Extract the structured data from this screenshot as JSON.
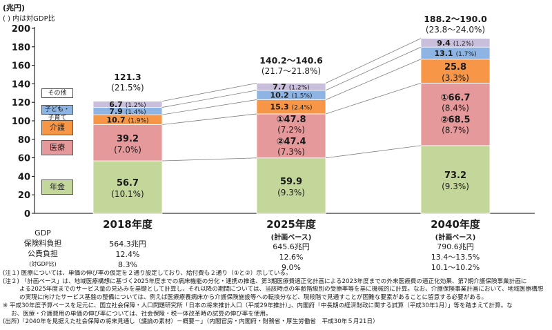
{
  "header": {
    "unit": "(兆円)",
    "note": "( ) 内は対GDP比"
  },
  "colors": {
    "pension": "#c4d79b",
    "medical": "#e6999a",
    "care": "#f79646",
    "child": "#8db4e2",
    "other": "#c9bedb",
    "connector": "#7f7f7f",
    "axis": "#000000"
  },
  "chart_data": {
    "type": "bar",
    "stacked": true,
    "ylim": [
      0,
      200
    ],
    "yticks": [
      0,
      20,
      40,
      60,
      80,
      100,
      120,
      140,
      160,
      180,
      200
    ],
    "categories": [
      "2018年度",
      "2025年度",
      "2040年度"
    ],
    "category_sub": [
      "",
      "(計画ベース)",
      "(計画ベース)"
    ],
    "series": [
      {
        "name": "年金",
        "key": "pension",
        "values": [
          56.7,
          59.9,
          73.2
        ],
        "labels": [
          "56.7",
          "59.9",
          "73.2"
        ],
        "sublabels": [
          "(10.1%)",
          "(9.3%)",
          "(9.3%)"
        ]
      },
      {
        "name": "医療",
        "key": "medical",
        "values": [
          39.2,
          47.6,
          67.6
        ],
        "labels": [
          "39.2",
          "①47.8",
          "①66.7"
        ],
        "sublabels": [
          "(7.0%)",
          "(7.2%)",
          "(8.4%)"
        ],
        "labels2": [
          "",
          "②47.4",
          "②68.5"
        ],
        "sublabels2": [
          "",
          "(7.3%)",
          "(8.7%)"
        ]
      },
      {
        "name": "介護",
        "key": "care",
        "values": [
          10.7,
          15.3,
          25.8
        ],
        "labels": [
          "10.7",
          "15.3",
          "25.8"
        ],
        "sublabels": [
          "(1.9%)",
          "(2.4%)",
          "(3.3%)"
        ]
      },
      {
        "name": "子ども・子育て",
        "key": "child",
        "values": [
          7.9,
          10.2,
          13.1
        ],
        "labels": [
          "7.9",
          "10.2",
          "13.1"
        ],
        "sublabels": [
          "(1.4%)",
          "(1.5%)",
          "(1.7%)"
        ]
      },
      {
        "name": "その他",
        "key": "other",
        "values": [
          6.7,
          7.7,
          9.4
        ],
        "labels": [
          "6.7",
          "7.7",
          "9.4"
        ],
        "sublabels": [
          "(1.2%)",
          "(1.2%)",
          "(1.2%)"
        ]
      }
    ],
    "totals": [
      "121.3",
      "140.2～140.6",
      "188.2～190.0"
    ],
    "totals_ratio": [
      "(21.5%)",
      "(21.7～21.8%)",
      "(23.8～24.0%)"
    ]
  },
  "metrics": {
    "labels": {
      "gdp": "GDP",
      "insurance": "保険料負担",
      "public": "公費負担",
      "ratio": "(対GDP比)"
    },
    "values": [
      {
        "gdp": "564.3兆円",
        "insurance": "12.4%",
        "public": "8.3%"
      },
      {
        "gdp": "645.6兆円",
        "insurance": "12.6%",
        "public": "9.0%"
      },
      {
        "gdp": "790.6兆円",
        "insurance": "13.4～13.5%",
        "public": "10.1～10.2%"
      }
    ]
  },
  "notes": [
    "(注１) 医療については、単価の伸び率の仮定を２通り設定しており、給付費も２通り（①と②）示している。",
    "(注２) 「計画ベース」は、地域医療構想に基づく2025年度までの病床機能の分化・連携の推進、第3期医療費適正化計画による2023年度までの外来医療費の適正化効果、第7期介護保険事業計画に",
    "よる2025年度までのサービス量の見込みを基礎として計算し、それ以降の期間については、当該時点の年齢階級別の受療率等を基に機械的に計算。なお、介護保険事業計画において、地域医療構想",
    "の実現に向けたサービス基盤の整備については、例えば医療療養病床から介護保険施設等への転換分など、現段階で見通すことが困難な要素があることに留意する必要がある。",
    "※ 平成30年度予算ベースを足元に、国立社会保障・人口問題研究所「日本の将来推計人口（平成29年推計）」、内閣府「中長期の経済財政に関する試算（平成30年1月）」等を踏まえて計算。な",
    "お、医療・介護費用の単価の伸び率については、社会保障・税一体改革時の試算の伸び率を使用。",
    "(出所)「2040年を見据えた社会保障の将来見通し（議論の素材）－概要－」（内閣官房・内閣府・財務省・厚生労働省　平成30年５月21日）"
  ]
}
